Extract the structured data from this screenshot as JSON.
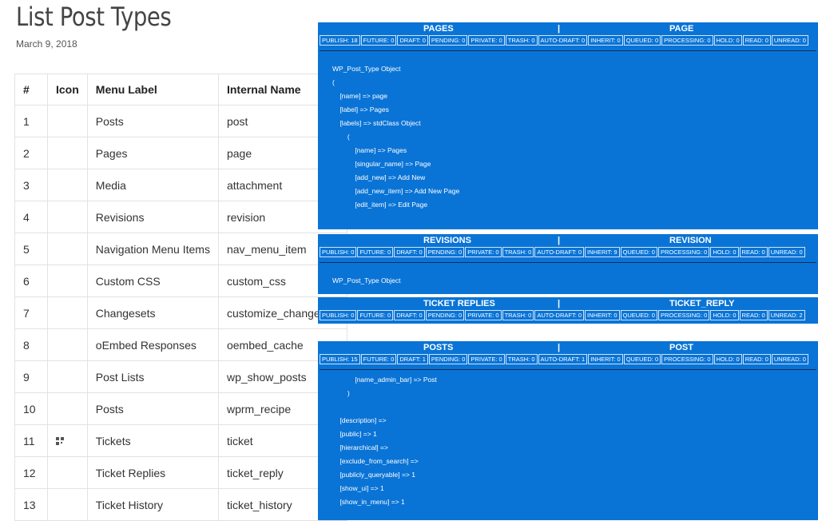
{
  "header": {
    "title": "List Post Types",
    "date": "March 9, 2018"
  },
  "table": {
    "columns": [
      "#",
      "Icon",
      "Menu Label",
      "Internal Name"
    ],
    "rows": [
      {
        "num": "1",
        "icon": "",
        "label": "Posts",
        "name": "post"
      },
      {
        "num": "2",
        "icon": "",
        "label": "Pages",
        "name": "page"
      },
      {
        "num": "3",
        "icon": "",
        "label": "Media",
        "name": "attachment"
      },
      {
        "num": "4",
        "icon": "",
        "label": "Revisions",
        "name": "revision"
      },
      {
        "num": "5",
        "icon": "",
        "label": "Navigation Menu Items",
        "name": "nav_menu_item"
      },
      {
        "num": "6",
        "icon": "",
        "label": "Custom CSS",
        "name": "custom_css"
      },
      {
        "num": "7",
        "icon": "",
        "label": "Changesets",
        "name": "customize_changeset"
      },
      {
        "num": "8",
        "icon": "",
        "label": "oEmbed Responses",
        "name": "oembed_cache"
      },
      {
        "num": "9",
        "icon": "",
        "label": "Post Lists",
        "name": "wp_show_posts"
      },
      {
        "num": "10",
        "icon": "",
        "label": "Posts",
        "name": "wprm_recipe"
      },
      {
        "num": "11",
        "icon": "qr-code-icon",
        "label": "Tickets",
        "name": "ticket"
      },
      {
        "num": "12",
        "icon": "",
        "label": "Ticket Replies",
        "name": "ticket_reply"
      },
      {
        "num": "13",
        "icon": "",
        "label": "Ticket History",
        "name": "ticket_history"
      }
    ]
  },
  "panels": [
    {
      "left_title": "PAGES",
      "separator": "|",
      "right_title": "PAGE",
      "counts": [
        "PUBLISH: 18",
        "FUTURE: 0",
        "DRAFT: 0",
        "PENDING: 0",
        "PRIVATE: 0",
        "TRASH: 0",
        "AUTO-DRAFT: 0",
        "INHERIT: 0",
        "QUEUED: 0",
        "PROCESSING: 0",
        "HOLD: 0",
        "READ: 0",
        "UNREAD: 0"
      ],
      "dump": [
        "WP_Post_Type Object",
        "(",
        "    [name] => page",
        "    [label] => Pages",
        "    [labels] => stdClass Object",
        "        (",
        "            [name] => Pages",
        "            [singular_name] => Page",
        "            [add_new] => Add New",
        "            [add_new_item] => Add New Page",
        "            [edit_item] => Edit Page"
      ]
    },
    {
      "left_title": "REVISIONS",
      "separator": "|",
      "right_title": "REVISION",
      "counts": [
        "PUBLISH: 0",
        "FUTURE: 0",
        "DRAFT: 0",
        "PENDING: 0",
        "PRIVATE: 0",
        "TRASH: 0",
        "AUTO-DRAFT: 0",
        "INHERIT: 9",
        "QUEUED: 0",
        "PROCESSING: 0",
        "HOLD: 0",
        "READ: 0",
        "UNREAD: 0"
      ],
      "dump": [
        "WP_Post_Type Object"
      ]
    },
    {
      "left_title": "TICKET REPLIES",
      "separator": "|",
      "right_title": "TICKET_REPLY",
      "counts": [
        "PUBLISH: 0",
        "FUTURE: 0",
        "DRAFT: 0",
        "PENDING: 0",
        "PRIVATE: 0",
        "TRASH: 0",
        "AUTO-DRAFT: 0",
        "INHERIT: 0",
        "QUEUED: 0",
        "PROCESSING: 0",
        "HOLD: 0",
        "READ: 0",
        "UNREAD: 2"
      ],
      "dump": []
    },
    {
      "left_title": "POSTS",
      "separator": "|",
      "right_title": "POST",
      "counts": [
        "PUBLISH: 15",
        "FUTURE: 0",
        "DRAFT: 1",
        "PENDING: 0",
        "PRIVATE: 0",
        "TRASH: 0",
        "AUTO-DRAFT: 1",
        "INHERIT: 0",
        "QUEUED: 0",
        "PROCESSING: 0",
        "HOLD: 0",
        "READ: 0",
        "UNREAD: 0"
      ],
      "dump": [
        "            [name_admin_bar] => Post",
        "        )",
        "",
        "    [description] =>",
        "    [public] => 1",
        "    [hierarchical] =>",
        "    [exclude_from_search] =>",
        "    [publicly_queryable] => 1",
        "    [show_ui] => 1",
        "    [show_in_menu] => 1"
      ]
    }
  ],
  "colors": {
    "panel_bg": "#0a74d6",
    "table_border": "#e2e2e2"
  }
}
